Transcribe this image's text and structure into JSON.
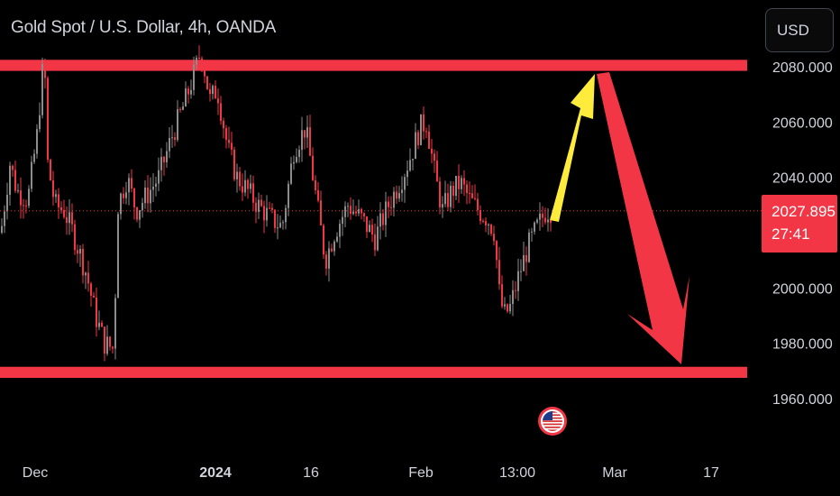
{
  "header": {
    "title": "Gold Spot / U.S. Dollar, 4h, OANDA",
    "currency_button": "USD"
  },
  "current_price": {
    "value": "2027.895",
    "countdown": "27:41"
  },
  "colors": {
    "background": "#000000",
    "up_candle": "#8c8c8c",
    "down_candle": "#f23645",
    "zone": "#f23645",
    "arrow_up": "#ffeb3b",
    "arrow_down": "#f23645",
    "price_line": "#f23645",
    "axis_text": "#d1d4dc"
  },
  "event_marker": {
    "icon": "us-flag-icon"
  },
  "chart_data": {
    "type": "candlestick",
    "timeframe": "4h",
    "ylim": [
      1952,
      2091
    ],
    "y_ticks": [
      {
        "value": 2080,
        "label": "2080.000"
      },
      {
        "value": 2060,
        "label": "2060.000"
      },
      {
        "value": 2040,
        "label": "2040.000"
      },
      {
        "value": 2000,
        "label": "2000.000"
      },
      {
        "value": 1980,
        "label": "1980.000"
      },
      {
        "value": 1960,
        "label": "1960.000"
      }
    ],
    "x_ticks": [
      {
        "label": "Dec",
        "bold": false
      },
      {
        "label": "2024",
        "bold": true
      },
      {
        "label": "16",
        "bold": false
      },
      {
        "label": "Feb",
        "bold": false
      },
      {
        "label": "13:00",
        "bold": false
      },
      {
        "label": "Mar",
        "bold": false
      },
      {
        "label": "17",
        "bold": false
      }
    ],
    "last_price": 2027.895,
    "zones": [
      {
        "name": "resistance",
        "from": 2078.5,
        "to": 2082.5
      },
      {
        "name": "support",
        "from": 1967.5,
        "to": 1971.5
      }
    ],
    "path_keypoints": [
      [
        0,
        2020
      ],
      [
        10,
        2045
      ],
      [
        18,
        2035
      ],
      [
        30,
        2032
      ],
      [
        40,
        2055
      ],
      [
        48,
        2085
      ],
      [
        52,
        2045
      ],
      [
        60,
        2030
      ],
      [
        70,
        2028
      ],
      [
        80,
        2020
      ],
      [
        95,
        2005
      ],
      [
        105,
        1990
      ],
      [
        115,
        1980
      ],
      [
        125,
        1978
      ],
      [
        130,
        2030
      ],
      [
        140,
        2040
      ],
      [
        150,
        2028
      ],
      [
        165,
        2035
      ],
      [
        175,
        2040
      ],
      [
        190,
        2055
      ],
      [
        205,
        2068
      ],
      [
        215,
        2078
      ],
      [
        222,
        2086
      ],
      [
        232,
        2068
      ],
      [
        240,
        2072
      ],
      [
        252,
        2050
      ],
      [
        262,
        2040
      ],
      [
        272,
        2036
      ],
      [
        285,
        2030
      ],
      [
        300,
        2025
      ],
      [
        312,
        2022
      ],
      [
        325,
        2050
      ],
      [
        338,
        2058
      ],
      [
        350,
        2032
      ],
      [
        360,
        2010
      ],
      [
        370,
        2020
      ],
      [
        385,
        2030
      ],
      [
        400,
        2025
      ],
      [
        415,
        2018
      ],
      [
        430,
        2030
      ],
      [
        445,
        2040
      ],
      [
        455,
        2048
      ],
      [
        465,
        2058
      ],
      [
        472,
        2060
      ],
      [
        482,
        2040
      ],
      [
        490,
        2028
      ],
      [
        500,
        2035
      ],
      [
        510,
        2038
      ],
      [
        520,
        2032
      ],
      [
        530,
        2028
      ],
      [
        540,
        2025
      ],
      [
        548,
        2020
      ],
      [
        552,
        2000
      ],
      [
        558,
        1990
      ],
      [
        565,
        1993
      ],
      [
        575,
        2005
      ],
      [
        585,
        2015
      ],
      [
        595,
        2022
      ],
      [
        605,
        2028
      ],
      [
        610,
        2028
      ]
    ]
  }
}
